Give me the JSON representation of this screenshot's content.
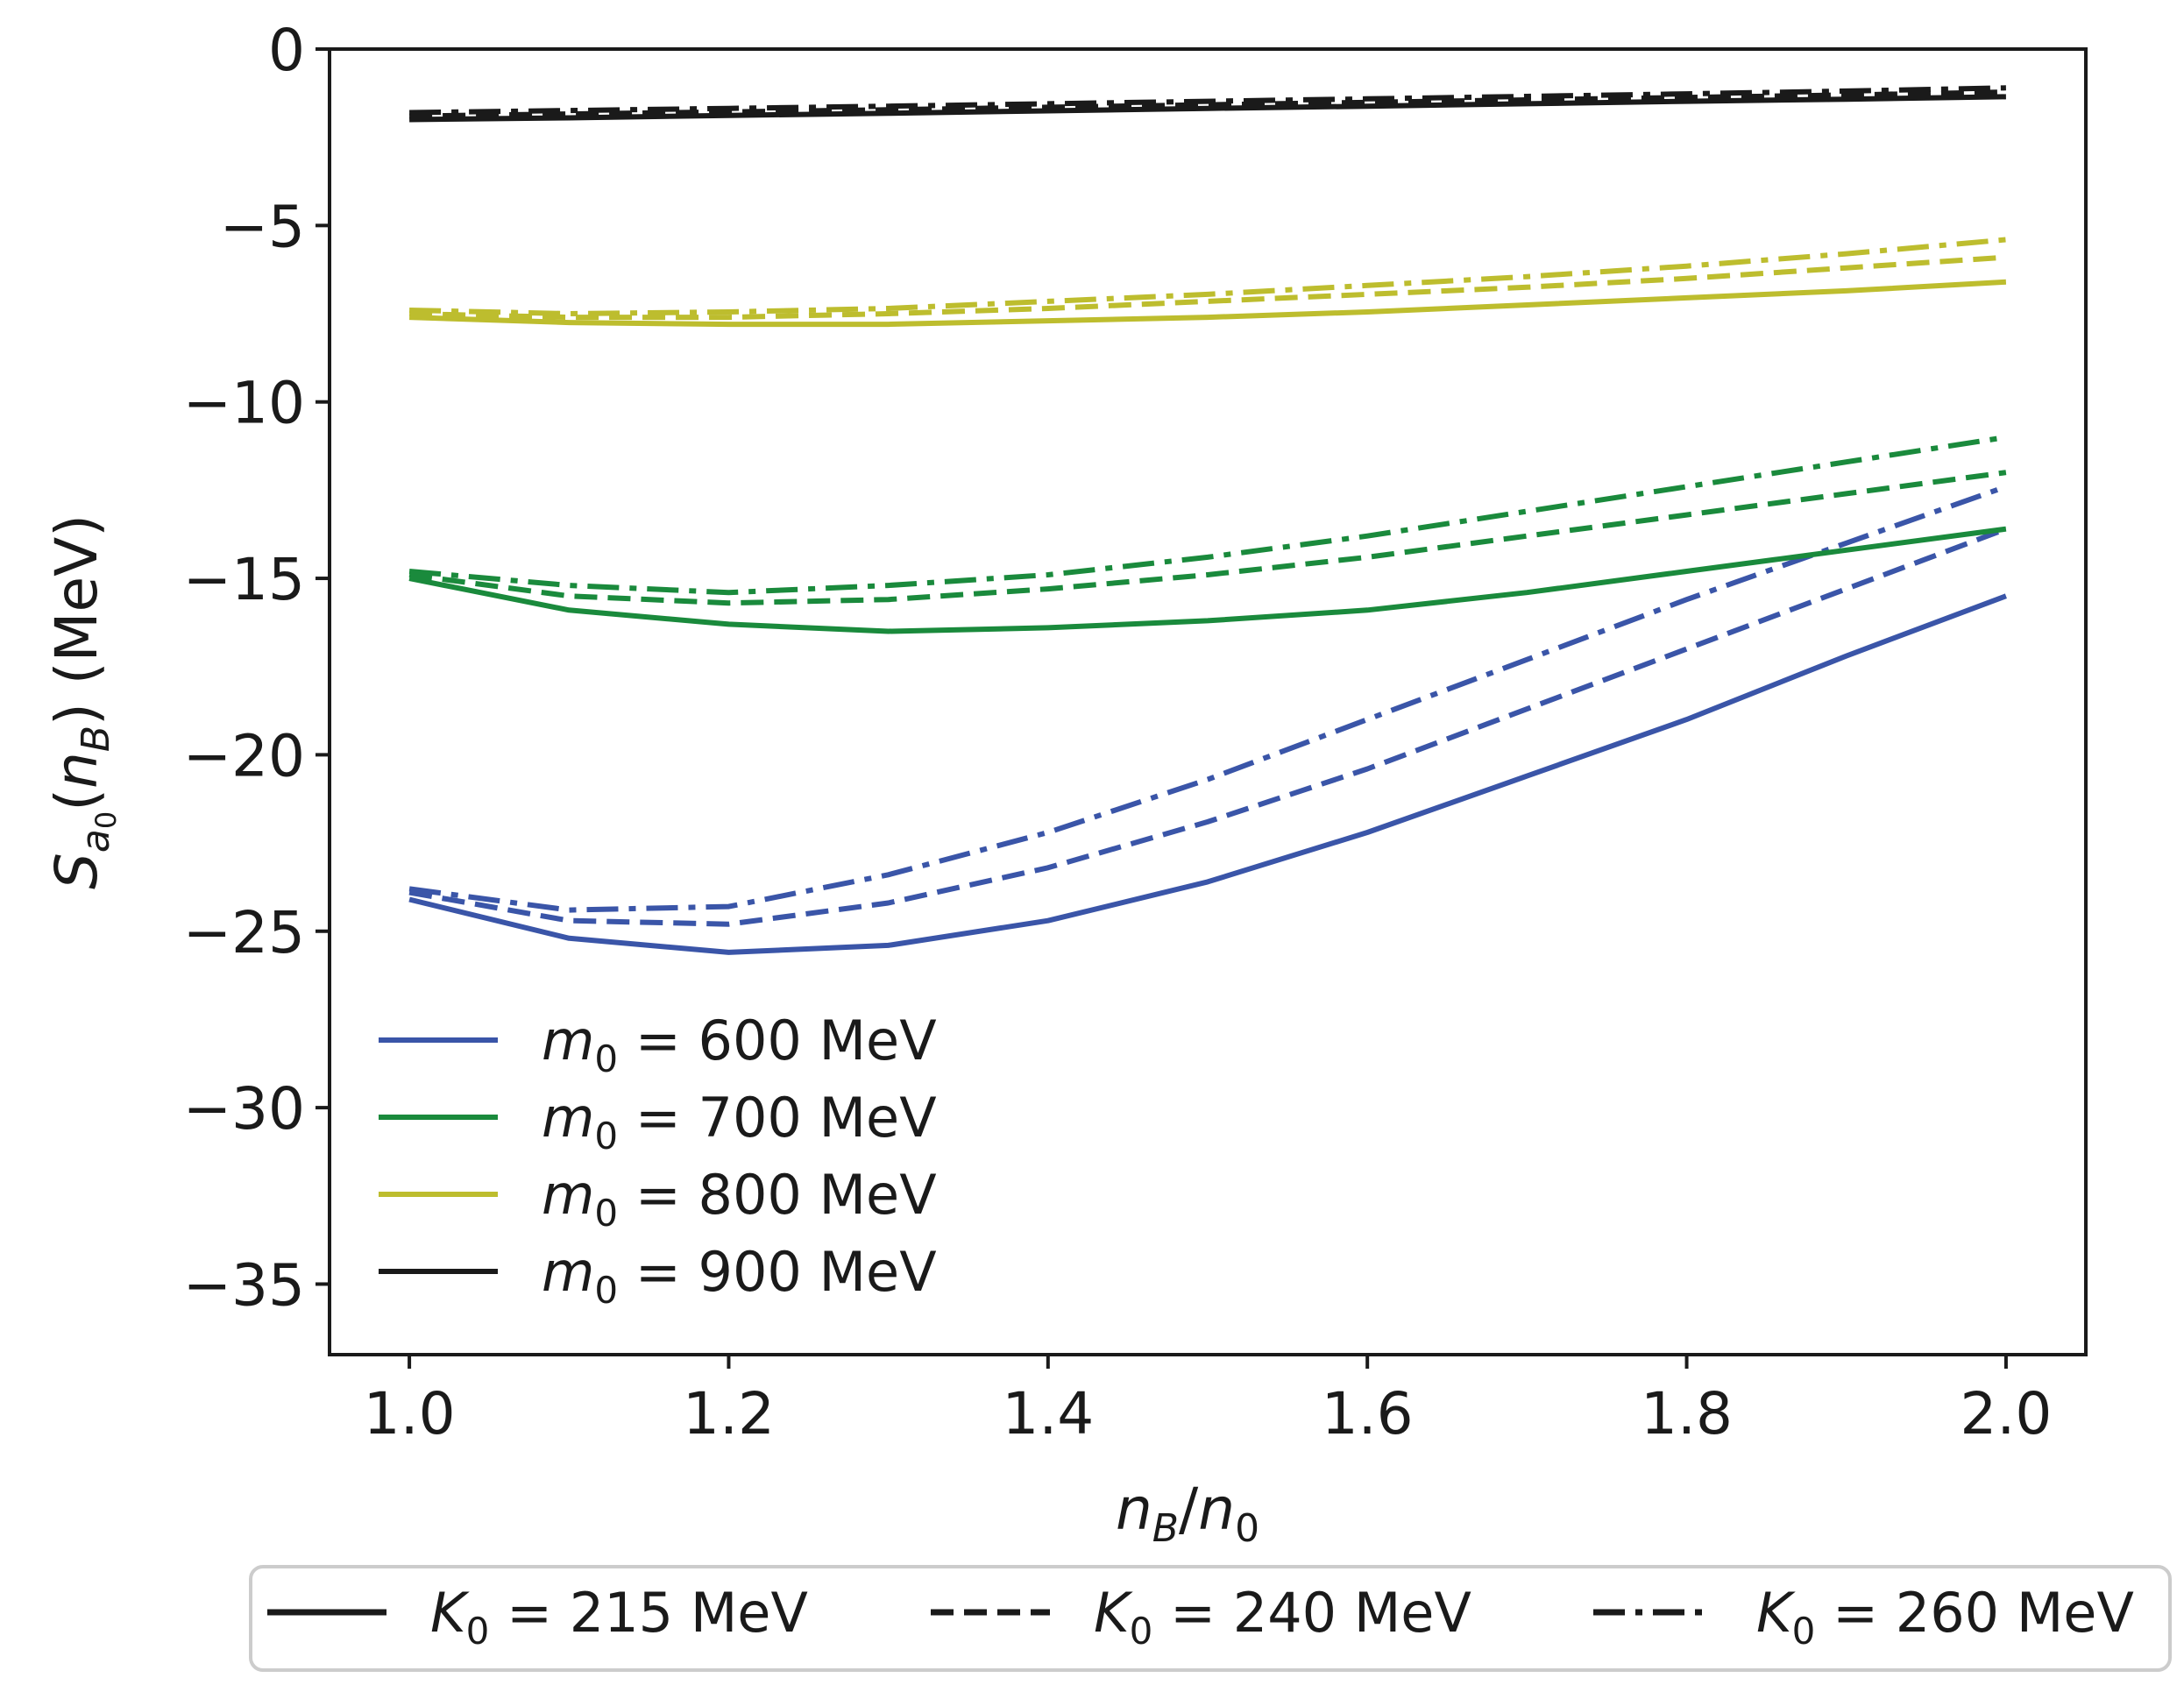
{
  "chart_data": {
    "type": "line",
    "title": "",
    "xlabel": "n_B/n_0",
    "ylabel": "S_a0(n_B) (MeV)",
    "xlim": [
      0.95,
      2.05
    ],
    "ylim": [
      -37,
      0
    ],
    "x_ticks": [
      1.0,
      1.2,
      1.4,
      1.6,
      1.8,
      2.0
    ],
    "x_tick_labels": [
      "1.0",
      "1.2",
      "1.4",
      "1.6",
      "1.8",
      "2.0"
    ],
    "y_ticks": [
      0,
      -5,
      -10,
      -15,
      -20,
      -25,
      -30,
      -35
    ],
    "y_tick_labels": [
      "0",
      "−5",
      "−10",
      "−15",
      "−20",
      "−25",
      "−30",
      "−35"
    ],
    "x": [
      1.0,
      1.1,
      1.2,
      1.3,
      1.4,
      1.5,
      1.6,
      1.7,
      1.8,
      1.9,
      2.0
    ],
    "series": [
      {
        "name": "m0 = 600 MeV, K0 = 215 MeV",
        "group": "m600",
        "style": "solid",
        "values": [
          -24.1,
          -25.2,
          -25.6,
          -25.4,
          -24.7,
          -23.6,
          -22.2,
          -20.6,
          -19.0,
          -17.2,
          -15.5
        ]
      },
      {
        "name": "m0 = 600 MeV, K0 = 240 MeV",
        "group": "m600",
        "style": "dashed",
        "values": [
          -23.9,
          -24.7,
          -24.8,
          -24.2,
          -23.2,
          -21.9,
          -20.4,
          -18.7,
          -17.0,
          -15.3,
          -13.6
        ]
      },
      {
        "name": "m0 = 600 MeV, K0 = 260 MeV",
        "group": "m600",
        "style": "dashdot",
        "values": [
          -23.8,
          -24.4,
          -24.3,
          -23.4,
          -22.2,
          -20.7,
          -19.0,
          -17.3,
          -15.6,
          -14.0,
          -12.4
        ]
      },
      {
        "name": "m0 = 700 MeV, K0 = 215 MeV",
        "group": "m700",
        "style": "solid",
        "values": [
          -15.0,
          -15.9,
          -16.3,
          -16.5,
          -16.4,
          -16.2,
          -15.9,
          -15.4,
          -14.8,
          -14.2,
          -13.6
        ]
      },
      {
        "name": "m0 = 700 MeV, K0 = 240 MeV",
        "group": "m700",
        "style": "dashed",
        "values": [
          -14.9,
          -15.5,
          -15.7,
          -15.6,
          -15.3,
          -14.9,
          -14.4,
          -13.8,
          -13.2,
          -12.6,
          -12.0
        ]
      },
      {
        "name": "m0 = 700 MeV, K0 = 260 MeV",
        "group": "m700",
        "style": "dashdot",
        "values": [
          -14.8,
          -15.2,
          -15.4,
          -15.2,
          -14.9,
          -14.4,
          -13.8,
          -13.1,
          -12.4,
          -11.7,
          -11.0
        ]
      },
      {
        "name": "m0 = 800 MeV, K0 = 215 MeV",
        "group": "m800",
        "style": "solid",
        "values": [
          -7.6,
          -7.75,
          -7.8,
          -7.8,
          -7.7,
          -7.6,
          -7.45,
          -7.25,
          -7.05,
          -6.85,
          -6.6
        ]
      },
      {
        "name": "m0 = 800 MeV, K0 = 240 MeV",
        "group": "m800",
        "style": "dashed",
        "values": [
          -7.5,
          -7.6,
          -7.6,
          -7.5,
          -7.35,
          -7.15,
          -6.95,
          -6.75,
          -6.5,
          -6.2,
          -5.9
        ]
      },
      {
        "name": "m0 = 800 MeV, K0 = 260 MeV",
        "group": "m800",
        "style": "dashdot",
        "values": [
          -7.4,
          -7.5,
          -7.45,
          -7.35,
          -7.15,
          -6.95,
          -6.7,
          -6.45,
          -6.15,
          -5.8,
          -5.4
        ]
      },
      {
        "name": "m0 = 900 MeV, K0 = 215 MeV",
        "group": "m900",
        "style": "solid",
        "values": [
          -2.0,
          -1.95,
          -1.88,
          -1.82,
          -1.75,
          -1.68,
          -1.62,
          -1.55,
          -1.48,
          -1.42,
          -1.35
        ]
      },
      {
        "name": "m0 = 900 MeV, K0 = 240 MeV",
        "group": "m900",
        "style": "dashed",
        "values": [
          -1.9,
          -1.84,
          -1.78,
          -1.72,
          -1.65,
          -1.58,
          -1.51,
          -1.44,
          -1.37,
          -1.3,
          -1.22
        ]
      },
      {
        "name": "m0 = 900 MeV, K0 = 260 MeV",
        "group": "m900",
        "style": "dashdot",
        "values": [
          -1.8,
          -1.74,
          -1.68,
          -1.62,
          -1.55,
          -1.48,
          -1.41,
          -1.34,
          -1.27,
          -1.19,
          -1.1
        ]
      }
    ],
    "colors": {
      "m600": "#3a55a8",
      "m700": "#1a8a3c",
      "m800": "#bdbd2e",
      "m900": "#1a1a1a"
    },
    "legend_inside": {
      "placement": "lower-left",
      "entries": [
        {
          "group": "m600",
          "symbol": "m",
          "sub": "0",
          "rest": " = 600 MeV"
        },
        {
          "group": "m700",
          "symbol": "m",
          "sub": "0",
          "rest": " = 700 MeV"
        },
        {
          "group": "m800",
          "symbol": "m",
          "sub": "0",
          "rest": " = 800 MeV"
        },
        {
          "group": "m900",
          "symbol": "m",
          "sub": "0",
          "rest": " = 900 MeV"
        }
      ]
    },
    "legend_outside": {
      "placement": "bottom",
      "entries": [
        {
          "style": "solid",
          "symbol": "K",
          "sub": "0",
          "rest": " = 215 MeV"
        },
        {
          "style": "dashed",
          "symbol": "K",
          "sub": "0",
          "rest": " = 240 MeV"
        },
        {
          "style": "dashdot",
          "symbol": "K",
          "sub": "0",
          "rest": " = 260 MeV"
        }
      ]
    }
  }
}
